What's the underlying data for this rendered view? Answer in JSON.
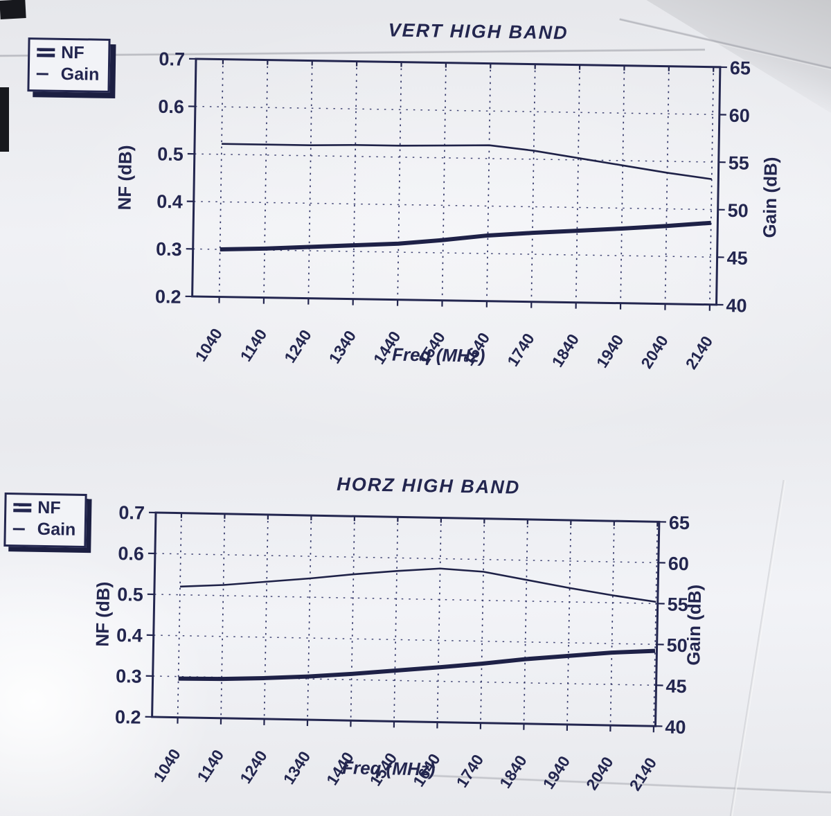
{
  "photo": {
    "background_color": "#b3b4b8",
    "paper_color": "#edeef2",
    "ink_color": "#23264f"
  },
  "chart_data": [
    {
      "type": "line",
      "title": "VERT HIGH BAND",
      "xlabel": "Freq (MHz)",
      "ylabel_left": "NF (dB)",
      "ylabel_right": "Gain (dB)",
      "x_ticks": [
        1040,
        1140,
        1240,
        1340,
        1440,
        1540,
        1640,
        1740,
        1840,
        1940,
        2040,
        2140
      ],
      "y_left_ticks": [
        0.7,
        0.6,
        0.5,
        0.4,
        0.3,
        0.2
      ],
      "y_right_ticks": [
        65,
        60,
        55,
        50,
        45,
        40
      ],
      "ylim_left": [
        0.2,
        0.7
      ],
      "ylim_right": [
        40,
        65
      ],
      "grid": "dashed",
      "legend": {
        "position": "outside-top-left",
        "entries": [
          "NF",
          "Gain"
        ]
      },
      "series": [
        {
          "name": "NF",
          "axis": "left",
          "line": "thick",
          "values": [
            0.3,
            0.303,
            0.308,
            0.313,
            0.318,
            0.327,
            0.338,
            0.345,
            0.351,
            0.357,
            0.364,
            0.372
          ]
        },
        {
          "name": "Gain",
          "axis": "right",
          "line": "thin",
          "values": [
            56.1,
            56.1,
            56.1,
            56.2,
            56.2,
            56.3,
            56.4,
            55.9,
            55.2,
            54.5,
            53.8,
            53.2
          ]
        }
      ]
    },
    {
      "type": "line",
      "title": "HORZ HIGH BAND",
      "xlabel": "Freq (MHz)",
      "ylabel_left": "NF (dB)",
      "ylabel_right": "Gain (dB)",
      "x_ticks": [
        1040,
        1140,
        1240,
        1340,
        1440,
        1540,
        1640,
        1740,
        1840,
        1940,
        2040,
        2140
      ],
      "y_left_ticks": [
        0.7,
        0.6,
        0.5,
        0.4,
        0.3,
        0.2
      ],
      "y_right_ticks": [
        65,
        60,
        55,
        50,
        45,
        40
      ],
      "ylim_left": [
        0.2,
        0.7
      ],
      "ylim_right": [
        40,
        65
      ],
      "grid": "dashed",
      "legend": {
        "position": "outside-top-left",
        "entries": [
          "NF",
          "Gain"
        ]
      },
      "series": [
        {
          "name": "NF",
          "axis": "left",
          "line": "thick",
          "values": [
            0.295,
            0.296,
            0.3,
            0.306,
            0.314,
            0.324,
            0.334,
            0.345,
            0.358,
            0.368,
            0.378,
            0.384
          ]
        },
        {
          "name": "Gain",
          "axis": "right",
          "line": "thin",
          "values": [
            56.0,
            56.3,
            56.8,
            57.3,
            57.9,
            58.4,
            58.8,
            58.5,
            57.6,
            56.7,
            55.9,
            55.2
          ]
        }
      ]
    }
  ]
}
